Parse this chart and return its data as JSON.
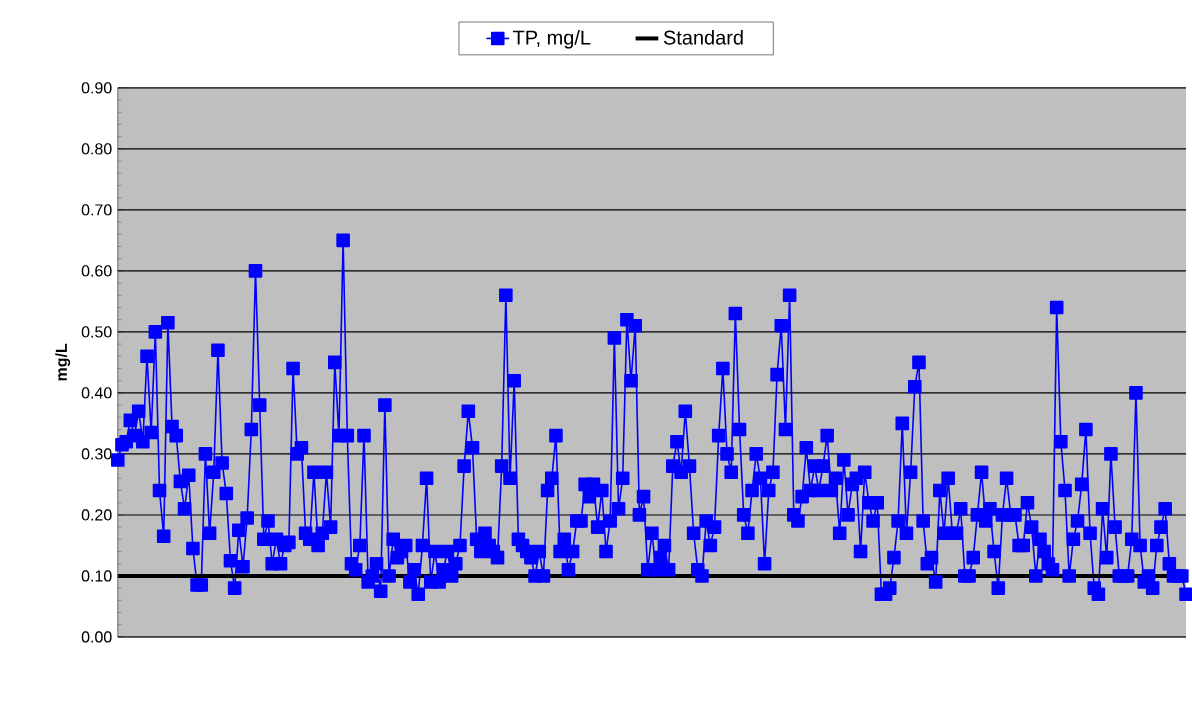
{
  "chart_data": {
    "type": "line",
    "ylabel": "mg/L",
    "categories": [
      null,
      null,
      null,
      null,
      null,
      null,
      null,
      null,
      null,
      null,
      null,
      null,
      null,
      null,
      null,
      null,
      null,
      null,
      null,
      null,
      null,
      null,
      null,
      null,
      null,
      null,
      null,
      null,
      null,
      null,
      null,
      null,
      null,
      null,
      null,
      null,
      null,
      null,
      null,
      null,
      null,
      null,
      null,
      null,
      null,
      null,
      null,
      null,
      null,
      null,
      null,
      null,
      null,
      null,
      null,
      null,
      null,
      null,
      null,
      null,
      null,
      null,
      null,
      null,
      null,
      null,
      null,
      null,
      null,
      null,
      null,
      null,
      null,
      null,
      null,
      null,
      null,
      null,
      null,
      null,
      null,
      null,
      null,
      null,
      null,
      null,
      null,
      null,
      null,
      null,
      null,
      null,
      null,
      null,
      null,
      null,
      null,
      null,
      null,
      null,
      null,
      null,
      null,
      null,
      null,
      null,
      null,
      null,
      null,
      null,
      null,
      null,
      null,
      null,
      null,
      null,
      null,
      null,
      null,
      null,
      null,
      null,
      null,
      null,
      null,
      null,
      null,
      null,
      null,
      null,
      null,
      null,
      null,
      null,
      null,
      null,
      null,
      null,
      null,
      null,
      null,
      null,
      null,
      null,
      null,
      null,
      null,
      null,
      null,
      null,
      null,
      null,
      null,
      null,
      null,
      null,
      null,
      null,
      null,
      null,
      null,
      null,
      null,
      null,
      null,
      null,
      null,
      null,
      null,
      null,
      null,
      null,
      null,
      null,
      null,
      null,
      null,
      null,
      null,
      null,
      null,
      null,
      null,
      null,
      null,
      null,
      null,
      null,
      null,
      null,
      null,
      null,
      null,
      null,
      null,
      null,
      null,
      null,
      null,
      null,
      null,
      null,
      null,
      null,
      null,
      null,
      null,
      null,
      null,
      null,
      null,
      null,
      null,
      null,
      null,
      null,
      null,
      null,
      null,
      null,
      null,
      null,
      null,
      null,
      null,
      null,
      null,
      null,
      null,
      null,
      null,
      null,
      null,
      null,
      null,
      null,
      null,
      null,
      null,
      null,
      null,
      null,
      null,
      null,
      null,
      null,
      null,
      null,
      null,
      null,
      null,
      null,
      null,
      null,
      null,
      null,
      null
    ],
    "series": [
      {
        "name": "TP, mg/L",
        "color": "#0000ff",
        "values": [
          0.29,
          0.315,
          0.32,
          0.355,
          0.33,
          0.37,
          0.32,
          0.46,
          0.335,
          0.5,
          0.24,
          0.165,
          0.515,
          0.345,
          0.33,
          0.255,
          0.21,
          0.265,
          0.145,
          0.085,
          0.085,
          0.3,
          0.17,
          0.27,
          0.47,
          0.285,
          0.235,
          0.125,
          0.08,
          0.175,
          0.115,
          0.195,
          0.34,
          0.6,
          0.38,
          0.16,
          0.19,
          0.12,
          0.16,
          0.12,
          0.15,
          0.155,
          0.44,
          0.3,
          0.31,
          0.17,
          0.16,
          0.27,
          0.15,
          0.17,
          0.27,
          0.18,
          0.45,
          0.33,
          0.65,
          0.33,
          0.12,
          0.11,
          0.15,
          0.33,
          0.09,
          0.1,
          0.12,
          0.075,
          0.38,
          0.1,
          0.16,
          0.13,
          0.14,
          0.15,
          0.09,
          0.11,
          0.07,
          0.15,
          0.26,
          0.09,
          0.14,
          0.09,
          0.11,
          0.14,
          0.1,
          0.12,
          0.15,
          0.28,
          0.37,
          0.31,
          0.16,
          0.14,
          0.17,
          0.15,
          0.14,
          0.13,
          0.28,
          0.56,
          0.26,
          0.42,
          0.16,
          0.15,
          0.14,
          0.13,
          0.1,
          0.14,
          0.1,
          0.24,
          0.26,
          0.33,
          0.14,
          0.16,
          0.11,
          0.14,
          0.19,
          0.19,
          0.25,
          0.23,
          0.25,
          0.18,
          0.24,
          0.14,
          0.19,
          0.49,
          0.21,
          0.26,
          0.52,
          0.42,
          0.51,
          0.2,
          0.23,
          0.11,
          0.17,
          0.11,
          0.13,
          0.15,
          0.11,
          0.28,
          0.32,
          0.27,
          0.37,
          0.28,
          0.17,
          0.11,
          0.1,
          0.19,
          0.15,
          0.18,
          0.33,
          0.44,
          0.3,
          0.27,
          0.53,
          0.34,
          0.2,
          0.17,
          0.24,
          0.3,
          0.26,
          0.12,
          0.24,
          0.27,
          0.43,
          0.51,
          0.34,
          0.56,
          0.2,
          0.19,
          0.23,
          0.31,
          0.24,
          0.28,
          0.24,
          0.28,
          0.33,
          0.24,
          0.26,
          0.17,
          0.29,
          0.2,
          0.25,
          0.26,
          0.14,
          0.27,
          0.22,
          0.19,
          0.22,
          0.07,
          0.07,
          0.08,
          0.13,
          0.19,
          0.35,
          0.17,
          0.27,
          0.41,
          0.45,
          0.19,
          0.12,
          0.13,
          0.09,
          0.24,
          0.17,
          0.26,
          0.17,
          0.17,
          0.21,
          0.1,
          0.1,
          0.13,
          0.2,
          0.27,
          0.19,
          0.21,
          0.14,
          0.08,
          0.2,
          0.26,
          0.2,
          0.2,
          0.15,
          0.15,
          0.22,
          0.18,
          0.1,
          0.16,
          0.14,
          0.12,
          0.11,
          0.54,
          0.32,
          0.24,
          0.1,
          0.16,
          0.19,
          0.25,
          0.34,
          0.17,
          0.08,
          0.07,
          0.21,
          0.13,
          0.3,
          0.18,
          0.1,
          0.1,
          0.1,
          0.16,
          0.4,
          0.15,
          0.09,
          0.1,
          0.08,
          0.15,
          0.18,
          0.21,
          0.12,
          0.1,
          0.1,
          0.1,
          0.07
        ]
      }
    ],
    "ref_lines": [
      {
        "axis": "y",
        "value": 0.1,
        "label": "Standard",
        "color": "#000000"
      }
    ],
    "ylim": [
      0,
      0.9
    ],
    "yticks": [
      {
        "value": 0,
        "label": "0.00"
      },
      {
        "value": 0.1,
        "label": "0.10"
      },
      {
        "value": 0.2,
        "label": "0.20"
      },
      {
        "value": 0.3,
        "label": "0.30"
      },
      {
        "value": 0.4,
        "label": "0.40"
      },
      {
        "value": 0.5,
        "label": "0.50"
      },
      {
        "value": 0.6,
        "label": "0.60"
      },
      {
        "value": 0.7,
        "label": "0.70"
      },
      {
        "value": 0.8,
        "label": "0.80"
      },
      {
        "value": 0.9,
        "label": "0.90"
      }
    ],
    "grid": "y",
    "legend": "top",
    "marker": "square",
    "line_style": "solid",
    "tick_labels": "y"
  }
}
